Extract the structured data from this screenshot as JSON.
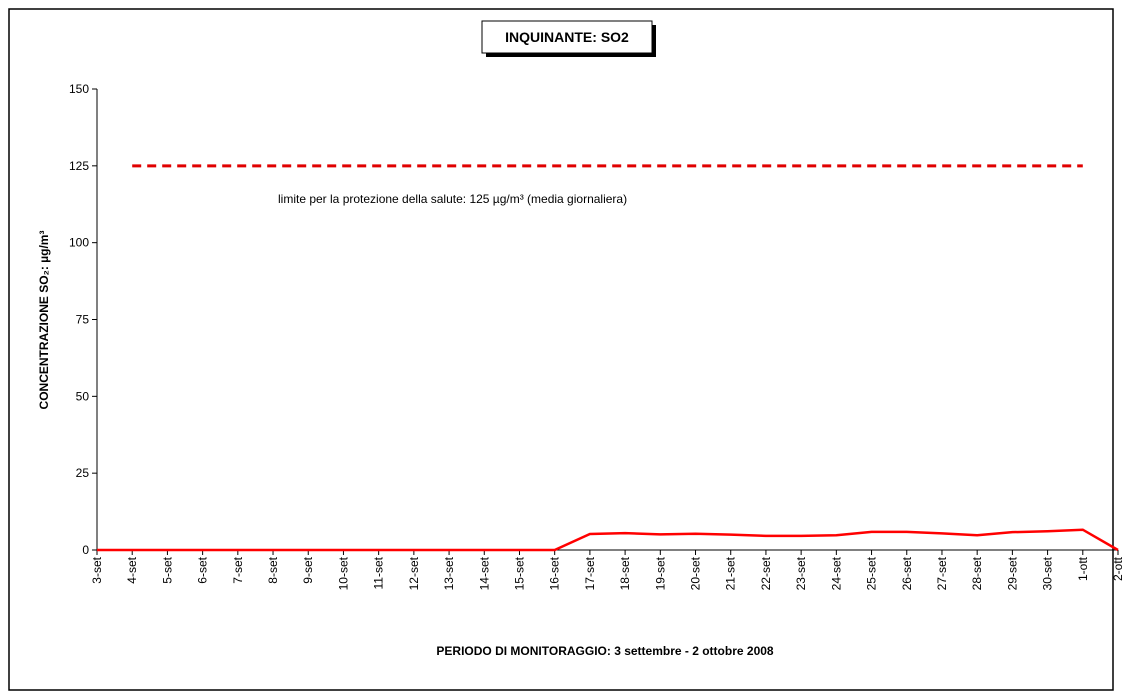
{
  "chart_data": {
    "type": "line",
    "title": "INQUINANTE: SO2",
    "y_label": "CONCENTRAZIONE SO₂:  µg/m³",
    "x_label": "PERIODO DI MONITORAGGIO: 3 settembre - 2 ottobre 2008",
    "annotation": "limite per la protezione della salute: 125 µg/m³ (media giornaliera)",
    "categories": [
      "3-set",
      "4-set",
      "5-set",
      "6-set",
      "7-set",
      "8-set",
      "9-set",
      "10-set",
      "11-set",
      "12-set",
      "13-set",
      "14-set",
      "15-set",
      "16-set",
      "17-set",
      "18-set",
      "19-set",
      "20-set",
      "21-set",
      "22-set",
      "23-set",
      "24-set",
      "25-set",
      "26-set",
      "27-set",
      "28-set",
      "29-set",
      "30-set",
      "1-ott",
      "2-ott"
    ],
    "series": [
      {
        "color": "#ff0000",
        "values": [
          0,
          0,
          0,
          0,
          0,
          0,
          0,
          0,
          0,
          0,
          0,
          0,
          0,
          0,
          5.2,
          5.5,
          5.1,
          5.3,
          5.0,
          4.6,
          4.6,
          4.8,
          5.9,
          5.9,
          5.4,
          4.8,
          5.8,
          6.1,
          6.6,
          0
        ]
      },
      {
        "color": "#e00000",
        "dashed": true,
        "values": [
          null,
          125,
          125,
          125,
          125,
          125,
          125,
          125,
          125,
          125,
          125,
          125,
          125,
          125,
          125,
          125,
          125,
          125,
          125,
          125,
          125,
          125,
          125,
          125,
          125,
          125,
          125,
          125,
          125,
          null
        ]
      }
    ],
    "ylim": [
      0,
      150
    ],
    "yticks": [
      0,
      25,
      50,
      75,
      100,
      125,
      150
    ]
  }
}
